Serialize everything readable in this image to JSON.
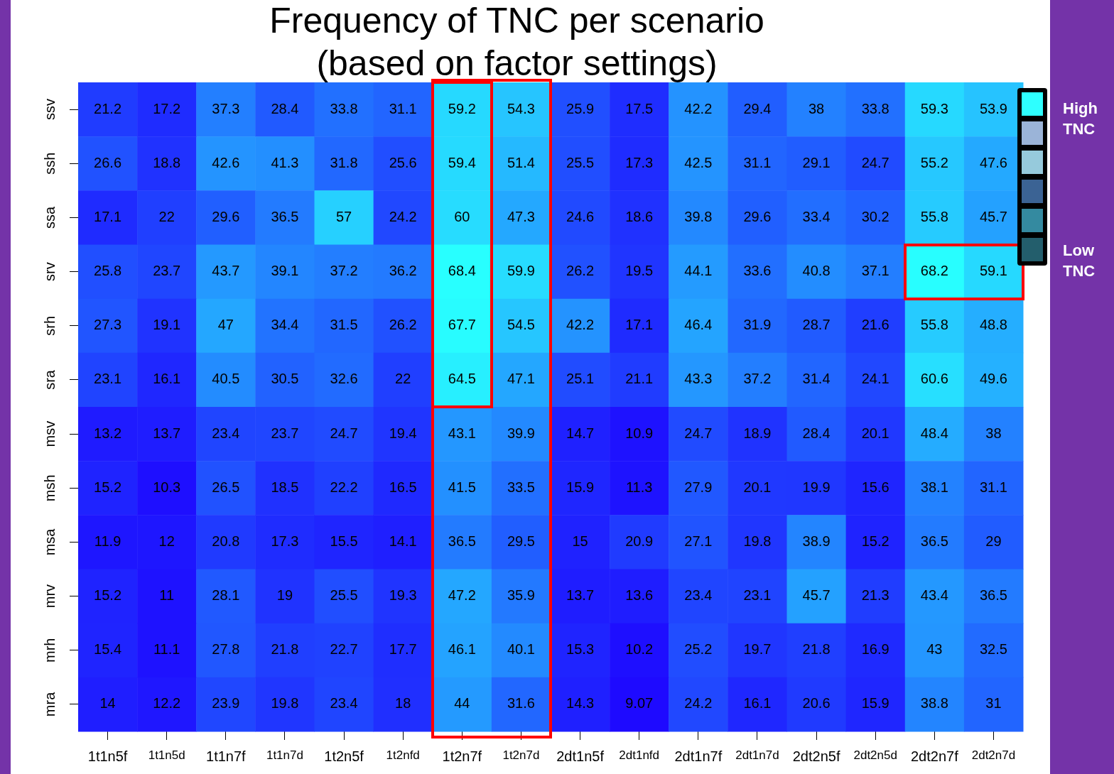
{
  "chart_data": {
    "type": "heatmap",
    "title": "Frequency of TNC per scenario",
    "subtitle": "(based on factor settings)",
    "categories": [
      "1t1n5f",
      "1t1n5d",
      "1t1n7f",
      "1t1n7d",
      "1t2n5f",
      "1t2nfd",
      "1t2n7f",
      "1t2n7d",
      "2dt1n5f",
      "2dt1nfd",
      "2dt1n7f",
      "2dt1n7d",
      "2dt2n5f",
      "2dt2n5d",
      "2dt2n7f",
      "2dt2n7d"
    ],
    "y_categories": [
      "ssv",
      "ssh",
      "ssa",
      "srv",
      "srh",
      "sra",
      "msv",
      "msh",
      "msa",
      "mrv",
      "mrh",
      "mra"
    ],
    "cells": [
      [
        21.2,
        17.2,
        37.3,
        28.4,
        33.8,
        31.1,
        59.2,
        54.3,
        25.9,
        17.5,
        42.2,
        29.4,
        38,
        33.8,
        59.3,
        53.9
      ],
      [
        26.6,
        18.8,
        42.6,
        41.3,
        31.8,
        25.6,
        59.4,
        51.4,
        25.5,
        17.3,
        42.5,
        31.1,
        29.1,
        24.7,
        55.2,
        47.6
      ],
      [
        17.1,
        22,
        29.6,
        36.5,
        57,
        24.2,
        60,
        47.3,
        24.6,
        18.6,
        39.8,
        29.6,
        33.4,
        30.2,
        55.8,
        45.7
      ],
      [
        25.8,
        23.7,
        43.7,
        39.1,
        37.2,
        36.2,
        68.4,
        59.9,
        26.2,
        19.5,
        44.1,
        33.6,
        40.8,
        37.1,
        68.2,
        59.1
      ],
      [
        27.3,
        19.1,
        47,
        34.4,
        31.5,
        26.2,
        67.7,
        54.5,
        42.2,
        17.1,
        46.4,
        31.9,
        28.7,
        21.6,
        55.8,
        48.8
      ],
      [
        23.1,
        16.1,
        40.5,
        30.5,
        32.6,
        22,
        64.5,
        47.1,
        25.1,
        21.1,
        43.3,
        37.2,
        31.4,
        24.1,
        60.6,
        49.6
      ],
      [
        13.2,
        13.7,
        23.4,
        23.7,
        24.7,
        19.4,
        43.1,
        39.9,
        14.7,
        10.9,
        24.7,
        18.9,
        28.4,
        20.1,
        48.4,
        38
      ],
      [
        15.2,
        10.3,
        26.5,
        18.5,
        22.2,
        16.5,
        41.5,
        33.5,
        15.9,
        11.3,
        27.9,
        20.1,
        19.9,
        15.6,
        38.1,
        31.1
      ],
      [
        11.9,
        12,
        20.8,
        17.3,
        15.5,
        14.1,
        36.5,
        29.5,
        15,
        20.9,
        27.1,
        19.8,
        38.9,
        15.2,
        36.5,
        29
      ],
      [
        15.2,
        11,
        28.1,
        19,
        25.5,
        19.3,
        47.2,
        35.9,
        13.7,
        13.6,
        23.4,
        23.1,
        45.7,
        21.3,
        43.4,
        36.5
      ],
      [
        15.4,
        11.1,
        27.8,
        21.8,
        22.7,
        17.7,
        46.1,
        40.1,
        15.3,
        10.2,
        25.2,
        19.7,
        21.8,
        16.9,
        43,
        32.5
      ],
      [
        14,
        12.2,
        23.9,
        19.8,
        23.4,
        18,
        44,
        31.6,
        14.3,
        9.07,
        24.2,
        16.1,
        20.6,
        15.9,
        38.8,
        31
      ]
    ],
    "data_labels": true,
    "annotations": [
      "High TNC",
      "Low TNC"
    ]
  }
}
